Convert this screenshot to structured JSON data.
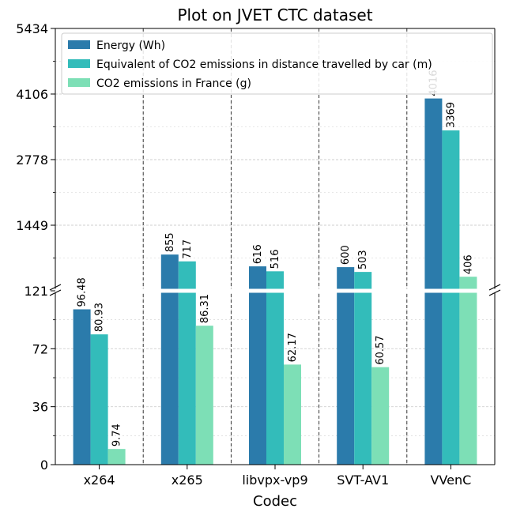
{
  "chart_data": {
    "type": "bar",
    "title": "Plot on JVET CTC dataset",
    "xlabel": "Codec",
    "ylabel": "",
    "categories": [
      "x264",
      "x265",
      "libvpx-vp9",
      "SVT-AV1",
      "VVenC"
    ],
    "series": [
      {
        "name": "Energy (Wh)",
        "color": "#2b7bab",
        "values": [
          96.48,
          855,
          616,
          600,
          4016
        ],
        "labels": [
          "96.48",
          "855",
          "616",
          "600",
          "4016"
        ]
      },
      {
        "name": "Equivalent of CO2 emissions in distance travelled by car (m)",
        "color": "#33bcba",
        "values": [
          80.93,
          717,
          516,
          503,
          3369
        ],
        "labels": [
          "80.93",
          "717",
          "516",
          "503",
          "3369"
        ]
      },
      {
        "name": "CO2 emissions in France (g)",
        "color": "#7ddfb6",
        "values": [
          9.74,
          86.31,
          62.17,
          60.57,
          406
        ],
        "labels": [
          "9.74",
          "86.31",
          "62.17",
          "60.57",
          "406"
        ]
      }
    ],
    "broken_axis": true,
    "lower_axis": {
      "ylim": [
        0,
        108
      ],
      "ticks": [
        0,
        36,
        72
      ]
    },
    "upper_axis": {
      "ylim": [
        121,
        5434
      ],
      "ticks": [
        121,
        1449,
        2778,
        4106,
        5434
      ]
    },
    "ytick_labels": [
      "0",
      "36",
      "72",
      "121",
      "1449",
      "2778",
      "4106",
      "5434"
    ],
    "grid": true,
    "legend_position": "top-left"
  }
}
